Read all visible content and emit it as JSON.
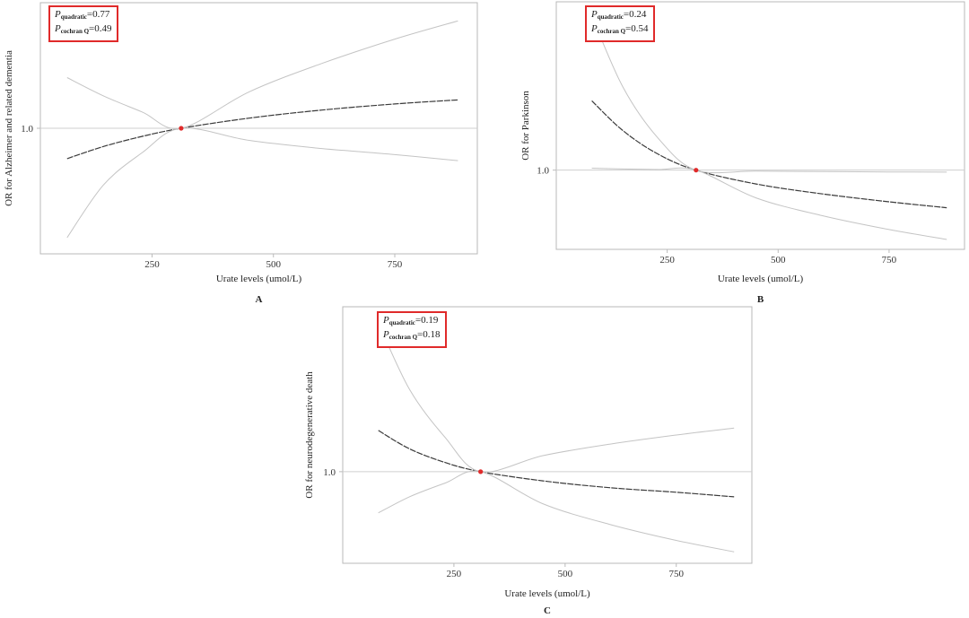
{
  "chart_data": [
    {
      "type": "line",
      "panel_label": "A",
      "xlabel": "Urate levels (umol/L)",
      "ylabel": "OR for Alzheimer and related dementia",
      "xticks": [
        250,
        500,
        750
      ],
      "yticks": [
        1.0
      ],
      "ytick_labels": [
        "1.0"
      ],
      "xlim": [
        20,
        920
      ],
      "reference_point": {
        "x": 310,
        "y": 1.0
      },
      "stats": [
        {
          "symbol": "P",
          "sub": "quadratic",
          "value": "=0.77"
        },
        {
          "symbol": "P",
          "sub": "cochran Q",
          "value": "=0.49"
        }
      ],
      "series": [
        {
          "role": "estimate",
          "x": [
            75,
            150,
            230,
            310,
            450,
            600,
            750,
            880
          ],
          "y": [
            0.85,
            0.91,
            0.96,
            1.0,
            1.05,
            1.09,
            1.12,
            1.14
          ]
        },
        {
          "role": "ci_upper",
          "x": [
            75,
            150,
            230,
            310,
            450,
            600,
            750,
            880
          ],
          "y": [
            1.25,
            1.16,
            1.08,
            1.0,
            1.18,
            1.32,
            1.44,
            1.53
          ]
        },
        {
          "role": "ci_lower",
          "x": [
            75,
            150,
            230,
            310,
            450,
            600,
            750,
            880
          ],
          "y": [
            0.46,
            0.72,
            0.88,
            1.0,
            0.94,
            0.9,
            0.87,
            0.84
          ]
        }
      ]
    },
    {
      "type": "line",
      "panel_label": "B",
      "xlabel": "Urate levels (umol/L)",
      "ylabel": "OR for Parkinson",
      "xticks": [
        250,
        500,
        750
      ],
      "yticks": [
        1.0
      ],
      "ytick_labels": [
        "1.0"
      ],
      "xlim": [
        0,
        920
      ],
      "reference_point": {
        "x": 315,
        "y": 1.0
      },
      "stats": [
        {
          "symbol": "P",
          "sub": "quadratic",
          "value": "=0.24"
        },
        {
          "symbol": "P",
          "sub": "cochran Q",
          "value": "=0.54"
        }
      ],
      "series": [
        {
          "role": "estimate",
          "x": [
            80,
            150,
            230,
            315,
            450,
            600,
            750,
            880
          ],
          "y": [
            1.35,
            1.2,
            1.08,
            1.0,
            0.93,
            0.88,
            0.84,
            0.81
          ]
        },
        {
          "role": "ci_upper",
          "x": [
            80,
            150,
            230,
            315,
            450,
            600,
            750,
            880
          ],
          "y": [
            1.78,
            1.42,
            1.16,
            1.0,
            0.995,
            0.993,
            0.991,
            0.99
          ]
        },
        {
          "role": "ci_lower",
          "x": [
            80,
            150,
            230,
            315,
            450,
            600,
            750,
            880
          ],
          "y": [
            1.01,
            1.006,
            1.003,
            1.0,
            0.86,
            0.77,
            0.7,
            0.65
          ]
        }
      ]
    },
    {
      "type": "line",
      "panel_label": "C",
      "xlabel": "Urate levels (umol/L)",
      "ylabel": "OR for neurodegenerative death",
      "xticks": [
        250,
        500,
        750
      ],
      "yticks": [
        1.0
      ],
      "ytick_labels": [
        "1.0"
      ],
      "xlim": [
        0,
        920
      ],
      "reference_point": {
        "x": 310,
        "y": 1.0
      },
      "stats": [
        {
          "symbol": "P",
          "sub": "quadratic",
          "value": "=0.19"
        },
        {
          "symbol": "P",
          "sub": "cochran Q",
          "value": "=0.18"
        }
      ],
      "series": [
        {
          "role": "estimate",
          "x": [
            80,
            150,
            230,
            310,
            450,
            600,
            750,
            880
          ],
          "y": [
            1.18,
            1.1,
            1.04,
            1.0,
            0.96,
            0.93,
            0.91,
            0.89
          ]
        },
        {
          "role": "ci_upper",
          "x": [
            80,
            150,
            230,
            310,
            450,
            600,
            750,
            880
          ],
          "y": [
            1.65,
            1.36,
            1.15,
            1.0,
            1.07,
            1.12,
            1.16,
            1.19
          ]
        },
        {
          "role": "ci_lower",
          "x": [
            80,
            150,
            230,
            310,
            450,
            600,
            750,
            880
          ],
          "y": [
            0.82,
            0.89,
            0.95,
            1.0,
            0.86,
            0.77,
            0.7,
            0.65
          ]
        }
      ]
    }
  ],
  "colors": {
    "highlight": "#e02a2a",
    "estimate": "#3a3a3a",
    "ci": "#c4c4c4",
    "frame": "#b8b8b8"
  }
}
